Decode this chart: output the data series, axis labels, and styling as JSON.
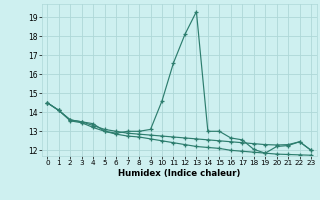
{
  "title": "",
  "xlabel": "Humidex (Indice chaleur)",
  "bg_color": "#cef0f0",
  "grid_color": "#aed8d8",
  "line_color": "#2d7d6e",
  "xlim": [
    -0.5,
    23.5
  ],
  "ylim": [
    11.7,
    19.7
  ],
  "yticks": [
    12,
    13,
    14,
    15,
    16,
    17,
    18,
    19
  ],
  "xticks": [
    0,
    1,
    2,
    3,
    4,
    5,
    6,
    7,
    8,
    9,
    10,
    11,
    12,
    13,
    14,
    15,
    16,
    17,
    18,
    19,
    20,
    21,
    22,
    23
  ],
  "series1": [
    [
      0,
      14.5
    ],
    [
      1,
      14.1
    ],
    [
      2,
      13.6
    ],
    [
      3,
      13.5
    ],
    [
      4,
      13.4
    ],
    [
      5,
      13.0
    ],
    [
      6,
      12.9
    ],
    [
      7,
      13.0
    ],
    [
      8,
      13.0
    ],
    [
      9,
      13.1
    ],
    [
      10,
      14.6
    ],
    [
      11,
      16.6
    ],
    [
      12,
      18.1
    ],
    [
      13,
      19.3
    ],
    [
      14,
      13.0
    ],
    [
      15,
      13.0
    ],
    [
      16,
      12.65
    ],
    [
      17,
      12.55
    ],
    [
      18,
      12.05
    ],
    [
      19,
      11.85
    ],
    [
      20,
      12.2
    ],
    [
      21,
      12.25
    ],
    [
      22,
      12.45
    ],
    [
      23,
      12.0
    ]
  ],
  "series2": [
    [
      0,
      14.5
    ],
    [
      1,
      14.1
    ],
    [
      2,
      13.55
    ],
    [
      3,
      13.45
    ],
    [
      4,
      13.2
    ],
    [
      5,
      13.0
    ],
    [
      6,
      12.85
    ],
    [
      7,
      12.75
    ],
    [
      8,
      12.7
    ],
    [
      9,
      12.6
    ],
    [
      10,
      12.5
    ],
    [
      11,
      12.4
    ],
    [
      12,
      12.3
    ],
    [
      13,
      12.2
    ],
    [
      14,
      12.15
    ],
    [
      15,
      12.1
    ],
    [
      16,
      12.0
    ],
    [
      17,
      11.95
    ],
    [
      18,
      11.9
    ],
    [
      19,
      11.85
    ],
    [
      20,
      11.8
    ],
    [
      21,
      11.78
    ],
    [
      22,
      11.76
    ],
    [
      23,
      11.74
    ]
  ],
  "series3": [
    [
      0,
      14.5
    ],
    [
      1,
      14.1
    ],
    [
      2,
      13.6
    ],
    [
      3,
      13.5
    ],
    [
      4,
      13.3
    ],
    [
      5,
      13.1
    ],
    [
      6,
      13.0
    ],
    [
      7,
      12.9
    ],
    [
      8,
      12.85
    ],
    [
      9,
      12.8
    ],
    [
      10,
      12.75
    ],
    [
      11,
      12.7
    ],
    [
      12,
      12.65
    ],
    [
      13,
      12.6
    ],
    [
      14,
      12.55
    ],
    [
      15,
      12.5
    ],
    [
      16,
      12.45
    ],
    [
      17,
      12.4
    ],
    [
      18,
      12.35
    ],
    [
      19,
      12.3
    ],
    [
      20,
      12.28
    ],
    [
      21,
      12.3
    ],
    [
      22,
      12.45
    ],
    [
      23,
      12.0
    ]
  ]
}
